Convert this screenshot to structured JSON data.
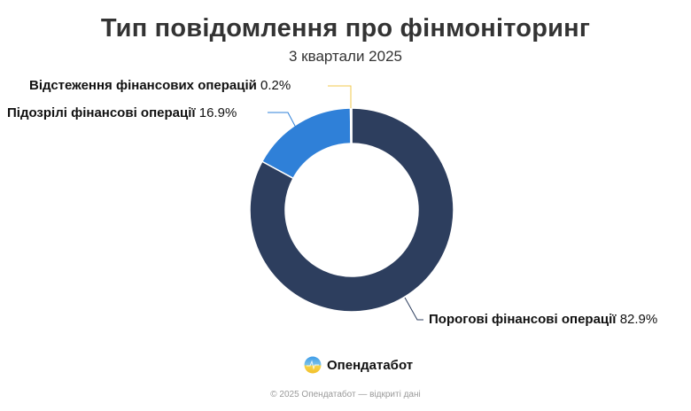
{
  "header": {
    "title": "Тип повідомлення про фінмоніторинг",
    "subtitle": "3 квартали 2025"
  },
  "labels": {
    "tracking": {
      "name": "Відстеження фінансових операцій",
      "pct": "0.2%"
    },
    "suspicious": {
      "name": "Підозрілі фінансові операції",
      "pct": "16.9%"
    },
    "threshold": {
      "name": "Порогові фінансові операції",
      "pct": "82.9%"
    }
  },
  "brand": {
    "logo_icon": "opendatabot-logo-icon",
    "name": "Опендатабот"
  },
  "footer": {
    "text": "© 2025 Опендатабот — відкриті дані"
  },
  "colors": {
    "threshold": "#2d3e5e",
    "suspicious": "#2f80d8",
    "tracking": "#f2c94c"
  },
  "chart_data": {
    "type": "pie",
    "variant": "donut",
    "title": "Тип повідомлення про фінмоніторинг",
    "subtitle": "3 квартали 2025",
    "categories": [
      "Порогові фінансові операції",
      "Підозрілі фінансові операції",
      "Відстеження фінансових операцій"
    ],
    "values": [
      82.9,
      16.9,
      0.2
    ],
    "unit": "%",
    "colors": [
      "#2d3e5e",
      "#2f80d8",
      "#f2c94c"
    ],
    "start_angle": "12 o'clock, clockwise",
    "legend": "none (outside data labels with leader lines)"
  }
}
